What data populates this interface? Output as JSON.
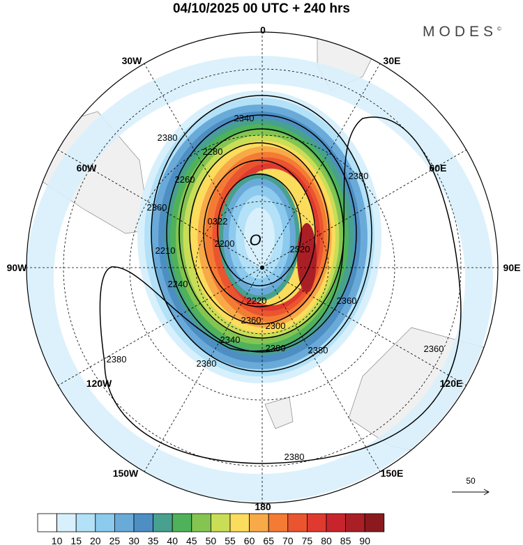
{
  "title": "04/10/2025  00 UTC  + 240 hrs",
  "logo": "MODES",
  "logo_mark": "©",
  "map": {
    "projection": "south polar stereographic",
    "longitude_labels": [
      "0",
      "30E",
      "60E",
      "90E",
      "120E",
      "150E",
      "180",
      "150W",
      "120W",
      "90W",
      "60W",
      "30W"
    ],
    "low_symbol": "O",
    "contour_labels": [
      "2340",
      "2380",
      "2380",
      "2360",
      "2280",
      "2260",
      "2360",
      "2200",
      "0322",
      "2210",
      "2320",
      "2240",
      "2220",
      "2360",
      "2300",
      "2340",
      "2380",
      "2380",
      "2380",
      "2360",
      "2380",
      "2380"
    ],
    "wind_reference": {
      "label": "50"
    }
  },
  "colorbar": {
    "levels": [
      "10",
      "15",
      "20",
      "25",
      "30",
      "35",
      "40",
      "45",
      "50",
      "55",
      "60",
      "65",
      "70",
      "75",
      "80",
      "85",
      "90"
    ],
    "colors": [
      "#ffffff",
      "#d8f0fb",
      "#b3e1f7",
      "#8ccaee",
      "#6aaad9",
      "#4d8fc3",
      "#48a08f",
      "#4fb25a",
      "#84c552",
      "#cadd57",
      "#fbdc5c",
      "#f8a948",
      "#f47b33",
      "#ea5530",
      "#df3a2f",
      "#c8242d",
      "#aa1f26",
      "#8b1a1e"
    ]
  }
}
